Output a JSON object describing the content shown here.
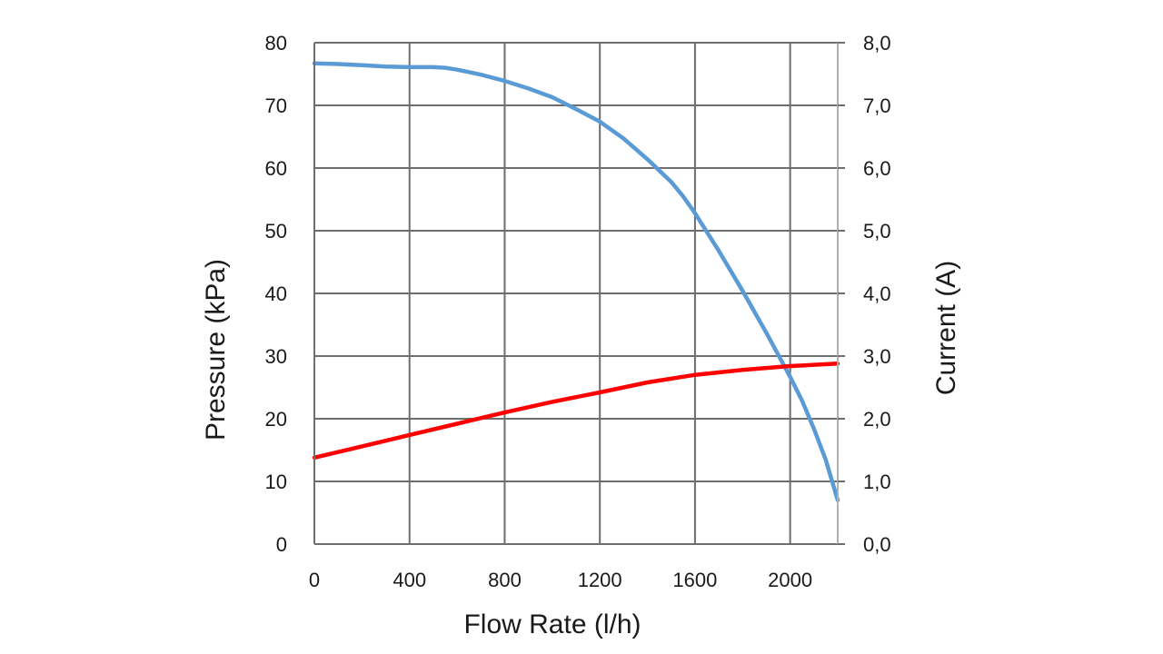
{
  "chart_data": {
    "type": "line",
    "xlabel": "Flow Rate (l/h)",
    "ylabel_left": "Pressure (kPa)",
    "ylabel_right": "Current (A)",
    "xlim": [
      0,
      2200
    ],
    "ylim_left": [
      0,
      80
    ],
    "ylim_right": [
      0.0,
      8.0
    ],
    "x_ticks": [
      "0",
      "400",
      "800",
      "1200",
      "1600",
      "2000"
    ],
    "y_left_ticks": [
      "0",
      "10",
      "20",
      "30",
      "40",
      "50",
      "60",
      "70",
      "80"
    ],
    "y_right_ticks": [
      "0,0",
      "1,0",
      "2,0",
      "3,0",
      "4,0",
      "5,0",
      "6,0",
      "7,0",
      "8,0"
    ],
    "grid": true,
    "series": [
      {
        "axis": "left",
        "color": "#5b9bd5",
        "x": [
          0,
          100,
          200,
          300,
          400,
          500,
          550,
          600,
          700,
          800,
          900,
          1000,
          1100,
          1200,
          1300,
          1400,
          1500,
          1550,
          1600,
          1650,
          1700,
          1800,
          1900,
          2000,
          2050,
          2100,
          2150,
          2200
        ],
        "y": [
          76.7,
          76.6,
          76.4,
          76.2,
          76.1,
          76.1,
          76.0,
          75.7,
          74.9,
          73.9,
          72.7,
          71.3,
          69.4,
          67.4,
          64.7,
          61.4,
          57.8,
          55.5,
          52.8,
          49.8,
          46.8,
          40.4,
          33.7,
          26.7,
          22.9,
          18.4,
          13.4,
          7.0
        ]
      },
      {
        "axis": "right",
        "color": "#ff0000",
        "x": [
          0,
          200,
          400,
          600,
          800,
          1000,
          1200,
          1400,
          1600,
          1800,
          2000,
          2200
        ],
        "y": [
          1.38,
          1.56,
          1.74,
          1.92,
          2.1,
          2.27,
          2.42,
          2.58,
          2.7,
          2.78,
          2.84,
          2.88
        ]
      }
    ]
  }
}
